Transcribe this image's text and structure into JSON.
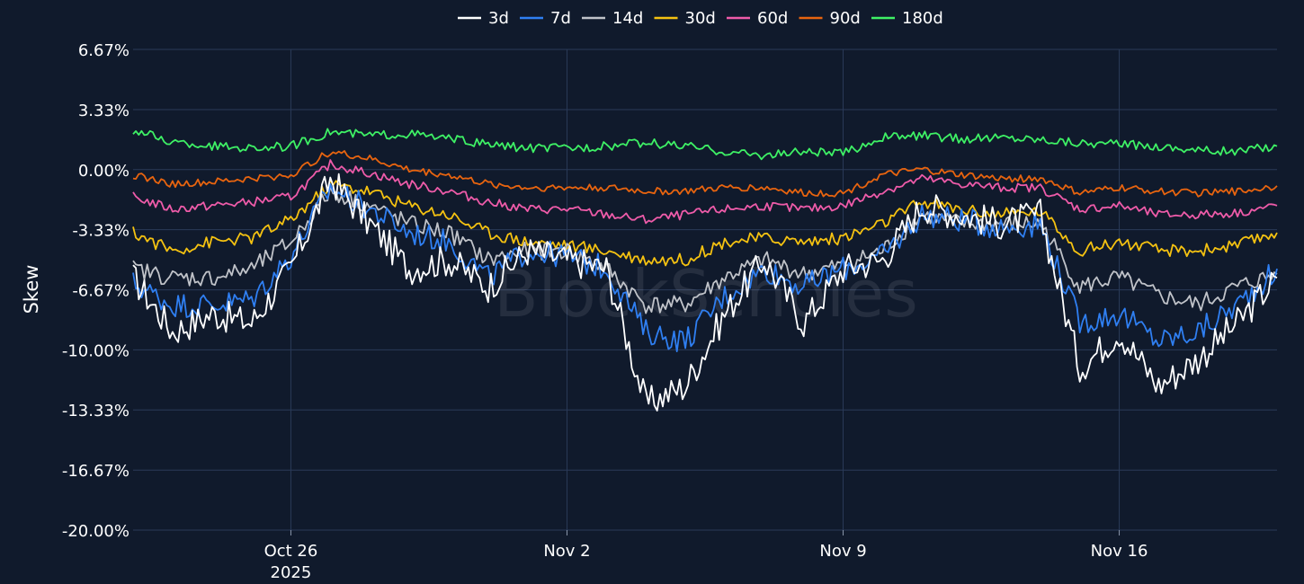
{
  "chart_data": {
    "type": "line",
    "title": "",
    "xlabel": "",
    "ylabel": "Skew",
    "watermark": "BlockScholes",
    "y_range": [
      -20.0,
      6.67
    ],
    "y_ticks": [
      "6.67%",
      "3.33%",
      "0.00%",
      "-3.33%",
      "-6.67%",
      "-10.00%",
      "-13.33%",
      "-16.67%",
      "-20.00%"
    ],
    "x_range_days": [
      "2025-10-22",
      "2025-11-20"
    ],
    "x_ticks": [
      {
        "date": "2025-10-26",
        "label": "Oct 26",
        "sublabel": "2025"
      },
      {
        "date": "2025-11-02",
        "label": "Nov 2",
        "sublabel": ""
      },
      {
        "date": "2025-11-09",
        "label": "Nov 9",
        "sublabel": ""
      },
      {
        "date": "2025-11-16",
        "label": "Nov 16",
        "sublabel": ""
      }
    ],
    "grid": true,
    "legend_position": "top-center",
    "series": [
      {
        "name": "3d",
        "color": "#ffffff",
        "x": [
          "2025-10-22",
          "2025-10-23",
          "2025-10-24",
          "2025-10-25",
          "2025-10-26",
          "2025-10-27",
          "2025-10-28",
          "2025-10-29",
          "2025-10-30",
          "2025-10-31",
          "2025-11-01",
          "2025-11-02",
          "2025-11-03",
          "2025-11-04",
          "2025-11-05",
          "2025-11-06",
          "2025-11-07",
          "2025-11-08",
          "2025-11-09",
          "2025-11-10",
          "2025-11-11",
          "2025-11-12",
          "2025-11-13",
          "2025-11-14",
          "2025-11-15",
          "2025-11-16",
          "2025-11-17",
          "2025-11-18",
          "2025-11-19",
          "2025-11-20"
        ],
        "values": [
          -6.0,
          -9.0,
          -8.0,
          -8.5,
          -5.5,
          -0.5,
          -3.0,
          -5.5,
          -5.0,
          -6.5,
          -4.5,
          -5.0,
          -5.5,
          -13.0,
          -12.0,
          -8.0,
          -5.0,
          -8.5,
          -5.5,
          -5.0,
          -2.0,
          -2.5,
          -3.0,
          -2.5,
          -11.0,
          -9.0,
          -12.0,
          -10.5,
          -8.5,
          -6.0
        ]
      },
      {
        "name": "7d",
        "color": "#2f7ff2",
        "x": [
          "2025-10-22",
          "2025-10-23",
          "2025-10-24",
          "2025-10-25",
          "2025-10-26",
          "2025-10-27",
          "2025-10-28",
          "2025-10-29",
          "2025-10-30",
          "2025-10-31",
          "2025-11-01",
          "2025-11-02",
          "2025-11-03",
          "2025-11-04",
          "2025-11-05",
          "2025-11-06",
          "2025-11-07",
          "2025-11-08",
          "2025-11-09",
          "2025-11-10",
          "2025-11-11",
          "2025-11-12",
          "2025-11-13",
          "2025-11-14",
          "2025-11-15",
          "2025-11-16",
          "2025-11-17",
          "2025-11-18",
          "2025-11-19",
          "2025-11-20"
        ],
        "values": [
          -6.3,
          -7.5,
          -7.5,
          -7.2,
          -4.8,
          -1.0,
          -2.2,
          -3.5,
          -4.0,
          -6.0,
          -4.5,
          -4.8,
          -5.5,
          -9.0,
          -9.5,
          -7.0,
          -5.5,
          -6.5,
          -5.5,
          -4.8,
          -2.5,
          -2.8,
          -3.2,
          -3.0,
          -8.5,
          -8.0,
          -9.5,
          -9.0,
          -7.5,
          -5.5
        ]
      },
      {
        "name": "14d",
        "color": "#c0c3c9",
        "x": [
          "2025-10-22",
          "2025-10-23",
          "2025-10-24",
          "2025-10-25",
          "2025-10-26",
          "2025-10-27",
          "2025-10-28",
          "2025-10-29",
          "2025-10-30",
          "2025-10-31",
          "2025-11-01",
          "2025-11-02",
          "2025-11-03",
          "2025-11-04",
          "2025-11-05",
          "2025-11-06",
          "2025-11-07",
          "2025-11-08",
          "2025-11-09",
          "2025-11-10",
          "2025-11-11",
          "2025-11-12",
          "2025-11-13",
          "2025-11-14",
          "2025-11-15",
          "2025-11-16",
          "2025-11-17",
          "2025-11-18",
          "2025-11-19",
          "2025-11-20"
        ],
        "values": [
          -5.5,
          -6.0,
          -6.0,
          -5.5,
          -4.0,
          -1.2,
          -2.0,
          -3.0,
          -3.5,
          -5.0,
          -4.5,
          -4.5,
          -5.5,
          -7.5,
          -7.5,
          -6.0,
          -5.0,
          -5.8,
          -5.3,
          -4.5,
          -2.5,
          -3.0,
          -3.0,
          -3.0,
          -6.5,
          -6.0,
          -7.0,
          -7.5,
          -6.5,
          -5.8
        ]
      },
      {
        "name": "30d",
        "color": "#f5c211",
        "x": [
          "2025-10-22",
          "2025-10-23",
          "2025-10-24",
          "2025-10-25",
          "2025-10-26",
          "2025-10-27",
          "2025-10-28",
          "2025-10-29",
          "2025-10-30",
          "2025-10-31",
          "2025-11-01",
          "2025-11-02",
          "2025-11-03",
          "2025-11-04",
          "2025-11-05",
          "2025-11-06",
          "2025-11-07",
          "2025-11-08",
          "2025-11-09",
          "2025-11-10",
          "2025-11-11",
          "2025-11-12",
          "2025-11-13",
          "2025-11-14",
          "2025-11-15",
          "2025-11-16",
          "2025-11-17",
          "2025-11-18",
          "2025-11-19",
          "2025-11-20"
        ],
        "values": [
          -3.5,
          -4.5,
          -4.0,
          -3.8,
          -2.8,
          -0.8,
          -1.2,
          -2.0,
          -2.5,
          -3.5,
          -4.0,
          -4.2,
          -4.5,
          -5.0,
          -5.0,
          -4.0,
          -3.8,
          -4.0,
          -3.8,
          -3.0,
          -1.8,
          -2.2,
          -2.5,
          -2.3,
          -4.5,
          -4.0,
          -4.5,
          -4.5,
          -4.2,
          -3.5
        ]
      },
      {
        "name": "60d",
        "color": "#ee5ba9",
        "x": [
          "2025-10-22",
          "2025-10-23",
          "2025-10-24",
          "2025-10-25",
          "2025-10-26",
          "2025-10-27",
          "2025-10-28",
          "2025-10-29",
          "2025-10-30",
          "2025-10-31",
          "2025-11-01",
          "2025-11-02",
          "2025-11-03",
          "2025-11-04",
          "2025-11-05",
          "2025-11-06",
          "2025-11-07",
          "2025-11-08",
          "2025-11-09",
          "2025-11-10",
          "2025-11-11",
          "2025-11-12",
          "2025-11-13",
          "2025-11-14",
          "2025-11-15",
          "2025-11-16",
          "2025-11-17",
          "2025-11-18",
          "2025-11-19",
          "2025-11-20"
        ],
        "values": [
          -1.5,
          -2.2,
          -2.0,
          -1.8,
          -1.5,
          0.3,
          -0.2,
          -0.8,
          -1.2,
          -1.8,
          -2.2,
          -2.2,
          -2.5,
          -2.8,
          -2.5,
          -2.2,
          -2.0,
          -2.2,
          -2.0,
          -1.2,
          -0.5,
          -0.8,
          -1.0,
          -1.0,
          -2.2,
          -2.0,
          -2.5,
          -2.5,
          -2.4,
          -2.0
        ]
      },
      {
        "name": "90d",
        "color": "#e8640f",
        "x": [
          "2025-10-22",
          "2025-10-23",
          "2025-10-24",
          "2025-10-25",
          "2025-10-26",
          "2025-10-27",
          "2025-10-28",
          "2025-10-29",
          "2025-10-30",
          "2025-10-31",
          "2025-11-01",
          "2025-11-02",
          "2025-11-03",
          "2025-11-04",
          "2025-11-05",
          "2025-11-06",
          "2025-11-07",
          "2025-11-08",
          "2025-11-09",
          "2025-11-10",
          "2025-11-11",
          "2025-11-12",
          "2025-11-13",
          "2025-11-14",
          "2025-11-15",
          "2025-11-16",
          "2025-11-17",
          "2025-11-18",
          "2025-11-19",
          "2025-11-20"
        ],
        "values": [
          -0.3,
          -0.8,
          -0.7,
          -0.5,
          -0.3,
          1.0,
          0.6,
          0.0,
          -0.3,
          -0.8,
          -1.0,
          -1.0,
          -1.0,
          -1.2,
          -1.2,
          -1.0,
          -1.0,
          -1.3,
          -1.3,
          -0.3,
          0.0,
          -0.3,
          -0.5,
          -0.5,
          -1.3,
          -1.0,
          -1.2,
          -1.3,
          -1.2,
          -0.9
        ]
      },
      {
        "name": "180d",
        "color": "#3ef165",
        "x": [
          "2025-10-22",
          "2025-10-23",
          "2025-10-24",
          "2025-10-25",
          "2025-10-26",
          "2025-10-27",
          "2025-10-28",
          "2025-10-29",
          "2025-10-30",
          "2025-10-31",
          "2025-11-01",
          "2025-11-02",
          "2025-11-03",
          "2025-11-04",
          "2025-11-05",
          "2025-11-06",
          "2025-11-07",
          "2025-11-08",
          "2025-11-09",
          "2025-11-10",
          "2025-11-11",
          "2025-11-12",
          "2025-11-13",
          "2025-11-14",
          "2025-11-15",
          "2025-11-16",
          "2025-11-17",
          "2025-11-18",
          "2025-11-19",
          "2025-11-20"
        ],
        "values": [
          2.2,
          1.5,
          1.3,
          1.2,
          1.3,
          2.1,
          1.9,
          2.0,
          1.7,
          1.4,
          1.2,
          1.2,
          1.3,
          1.5,
          1.3,
          1.0,
          0.8,
          1.0,
          0.9,
          1.8,
          1.9,
          1.7,
          1.8,
          1.7,
          1.5,
          1.4,
          1.3,
          1.1,
          1.0,
          1.3
        ]
      }
    ]
  }
}
